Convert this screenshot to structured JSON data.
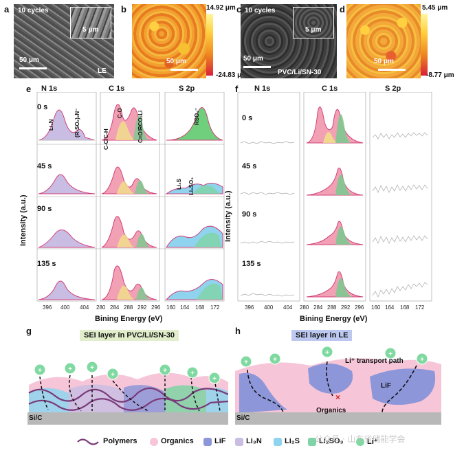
{
  "panels": {
    "a": {
      "label": "a",
      "cycles": "10 cycles",
      "scale_inset": "5 μm",
      "scale_main": "50 μm",
      "tag": "LE"
    },
    "b": {
      "label": "b",
      "scale": "50 μm",
      "cmax": "14.92 μm",
      "cmin": "-24.83 μm"
    },
    "c": {
      "label": "c",
      "cycles": "10 cycles",
      "scale_inset": "5 μm",
      "scale_main": "50 μm",
      "tag": "PVC/Li/SN-30"
    },
    "d": {
      "label": "d",
      "scale": "50 μm",
      "cmax": "5.45 μm",
      "cmin": "-8.77 μm"
    },
    "e": {
      "label": "e"
    },
    "f": {
      "label": "f"
    },
    "g": {
      "label": "g",
      "title": "SEI layer in PVC/Li/SN-30",
      "substrate": "Si/C"
    },
    "h": {
      "label": "h",
      "title": "SEI layer in LE",
      "substrate": "Si/C",
      "path_label": "Li⁺ transport path",
      "lif": "LiF",
      "organics": "Organics"
    }
  },
  "xps": {
    "headers": [
      "N 1s",
      "C 1s",
      "S 2p"
    ],
    "times": [
      "0 s",
      "45 s",
      "90 s",
      "135 s"
    ],
    "ylabel": "Intensity (a.u.)",
    "xlabel": "Bining Energy (eV)",
    "ticks_n": [
      "396",
      "400",
      "404"
    ],
    "ticks_c": [
      "280",
      "284",
      "288",
      "292",
      "296"
    ],
    "ticks_s": [
      "160",
      "164",
      "168",
      "172"
    ],
    "peaks": {
      "li3n": "Li₃N",
      "rso2n": "(R-SO₂)₂N⁻",
      "cch": "C-C/C-H",
      "co": "C-O",
      "cor": "C=O/RCO₂Li",
      "rso3": "RSO₃⁻",
      "li2s": "Li₂S",
      "li2so3": "Li₂SO₃"
    }
  },
  "legend": {
    "items": [
      "Polymers",
      "Organics",
      "LiF",
      "Li₃N",
      "Li₂S",
      "Li₂SO₃",
      "Li⁺"
    ],
    "watermark": "公众号 · 山东省储能学会"
  },
  "colors": {
    "polymer": "#7a3a7a",
    "organics": "#f6c6d8",
    "lif": "#8d96d8",
    "li3n": "#c9bde3",
    "li2s": "#8fd3ef",
    "li2so3": "#7fd3a6",
    "li_ion": "#7fd9a0",
    "pink": "#e0507a"
  }
}
